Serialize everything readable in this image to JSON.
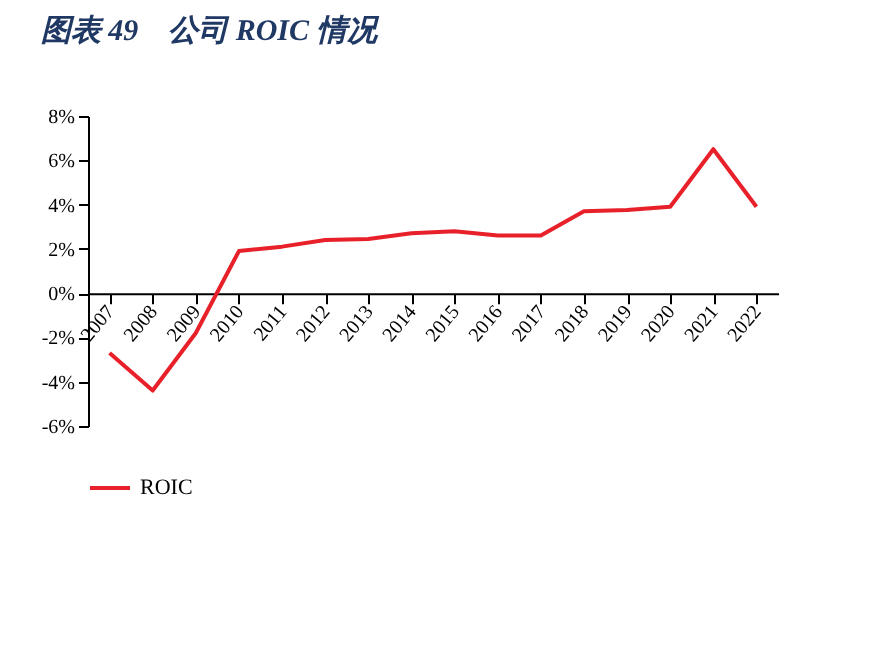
{
  "chart_data": {
    "type": "line",
    "title": "图表 49　公司 ROIC 情况",
    "categories": [
      "2007",
      "2008",
      "2009",
      "2010",
      "2011",
      "2012",
      "2013",
      "2014",
      "2015",
      "2016",
      "2017",
      "2018",
      "2019",
      "2020",
      "2021",
      "2022"
    ],
    "series": [
      {
        "name": "ROIC",
        "color": "#e8202a",
        "values": [
          -2.7,
          -4.4,
          -1.8,
          1.9,
          2.1,
          2.4,
          2.45,
          2.7,
          2.8,
          2.6,
          2.6,
          3.7,
          3.75,
          3.9,
          6.5,
          3.9
        ]
      }
    ],
    "ylim": [
      -6,
      8
    ],
    "yticks": [
      {
        "value": -6,
        "label": "-6%"
      },
      {
        "value": -4,
        "label": "-4%"
      },
      {
        "value": -2,
        "label": "-2%"
      },
      {
        "value": 0,
        "label": "0%"
      },
      {
        "value": 2,
        "label": "2%"
      },
      {
        "value": 4,
        "label": "4%"
      },
      {
        "value": 6,
        "label": "6%"
      },
      {
        "value": 8,
        "label": "8%"
      }
    ],
    "grid": false,
    "legend": "bottom",
    "marker": "none",
    "line_style": "solid"
  }
}
